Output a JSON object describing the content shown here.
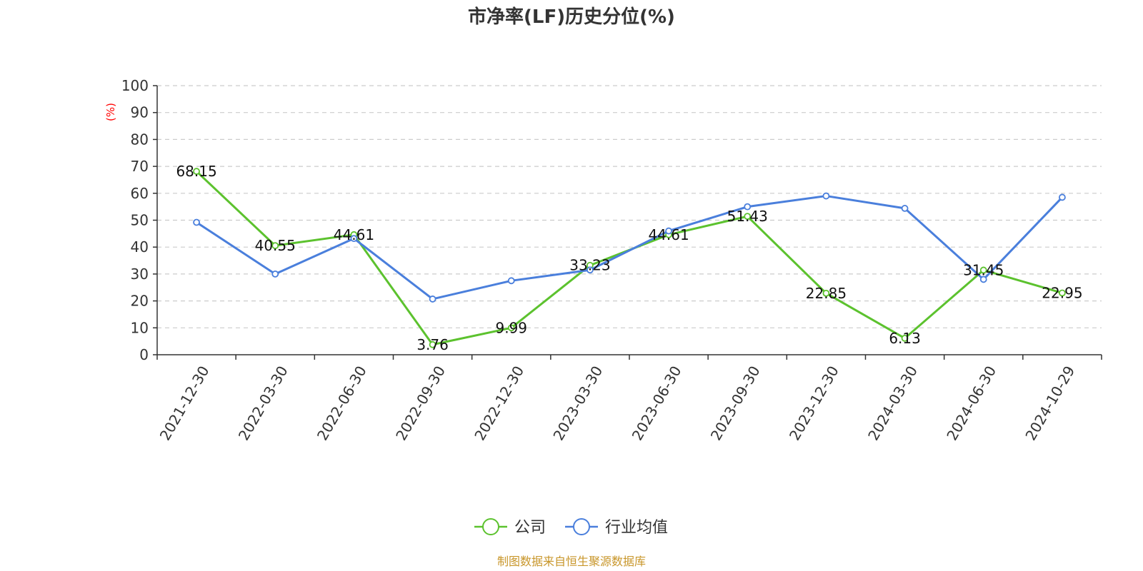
{
  "chart_data": {
    "type": "line",
    "title": "市净率(LF)历史分位(%)",
    "ylabel": "(%)",
    "ylim": [
      0,
      100
    ],
    "yticks": [
      0,
      10,
      20,
      30,
      40,
      50,
      60,
      70,
      80,
      90,
      100
    ],
    "categories": [
      "2021-12-30",
      "2022-03-30",
      "2022-06-30",
      "2022-09-30",
      "2022-12-30",
      "2023-03-30",
      "2023-06-30",
      "2023-09-30",
      "2023-12-30",
      "2024-03-30",
      "2024-06-30",
      "2024-10-29"
    ],
    "series": [
      {
        "name": "公司",
        "color": "#5cc22e",
        "values": [
          68.15,
          40.55,
          44.61,
          3.76,
          9.99,
          33.23,
          44.61,
          51.43,
          22.85,
          6.13,
          31.45,
          22.95
        ],
        "labels": [
          "68.15",
          "40.55",
          "44.61",
          "3.76",
          "9.99",
          "33.23",
          "44.61",
          "51.43",
          "22.85",
          "6.13",
          "31.45",
          "22.95"
        ]
      },
      {
        "name": "行业均值",
        "color": "#4a7fdc",
        "values": [
          49.2,
          30.0,
          43.2,
          20.7,
          27.5,
          31.5,
          46.0,
          55.0,
          59.0,
          54.4,
          28.0,
          58.5
        ]
      }
    ],
    "grid": true,
    "legend": "bottom-center"
  },
  "colors": {
    "ylabel": "#ff0000",
    "source": "#c8962a"
  },
  "source_text": "制图数据来自恒生聚源数据库"
}
